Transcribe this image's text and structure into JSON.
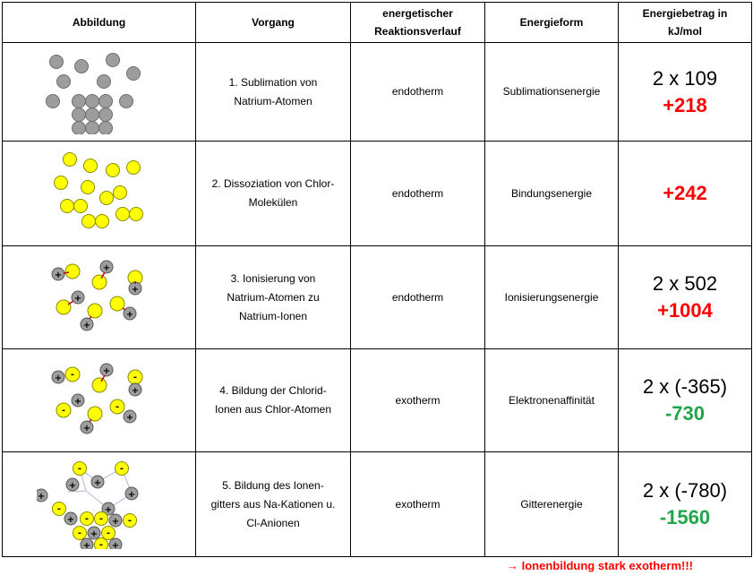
{
  "header": {
    "col1": "Abbildung",
    "col2": "Vorgang",
    "col3": "energetischer\nReaktionsverlauf",
    "col3_line1": "energetischer",
    "col3_line2": "Reaktionsverlauf",
    "col4": "Energieform",
    "col5_line1": "Energiebetrag in",
    "col5_line2": "kJ/mol"
  },
  "rows": [
    {
      "vorgang": [
        "1. Sublimation von",
        "Natrium-Atomen"
      ],
      "verlauf": "endotherm",
      "form": "Sublimationsenergie",
      "calc": "2 x 109",
      "result": "+218",
      "result_color": "#ff0000"
    },
    {
      "vorgang": [
        "2. Dissoziation von Chlor-",
        "Molekülen"
      ],
      "verlauf": "endotherm",
      "form": "Bindungsenergie",
      "calc": "",
      "result": "+242",
      "result_color": "#ff0000"
    },
    {
      "vorgang": [
        "3. Ionisierung von",
        "Natrium-Atomen zu",
        "Natrium-Ionen"
      ],
      "verlauf": "endotherm",
      "form": "Ionisierungsenergie",
      "calc": "2 x 502",
      "result": "+1004",
      "result_color": "#ff0000"
    },
    {
      "vorgang": [
        "4. Bildung der Chlorid-",
        "Ionen aus Chlor-Atomen"
      ],
      "verlauf": "exotherm",
      "form": "Elektronenaffinität",
      "calc": "2 x (-365)",
      "result": "-730",
      "result_color": "#1fa64a"
    },
    {
      "vorgang": [
        "5. Bildung des Ionen-",
        "gitters aus Na-Kationen u.",
        "Cl-Anionen"
      ],
      "verlauf": "exotherm",
      "form": "Gitterenergie",
      "calc": "2 x (-780)",
      "result": "-1560",
      "result_color": "#1fa64a"
    }
  ],
  "footer": "→ Ionenbildung stark exotherm!!!",
  "colors": {
    "sodium_fill": "#9d9d9d",
    "chlorine_fill": "#ffff00",
    "arrow": "#c0001a"
  },
  "symbols": {
    "plus": "+",
    "minus": "-"
  }
}
